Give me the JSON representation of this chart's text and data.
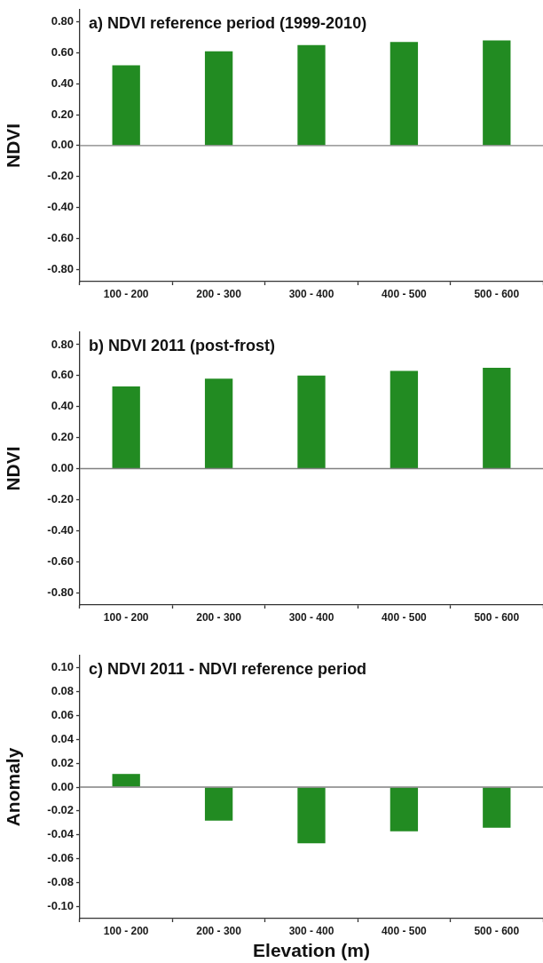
{
  "chart_data": [
    {
      "type": "bar",
      "title": "a) NDVI reference period (1999-2010)",
      "ylabel": "NDVI",
      "categories": [
        "100 - 200",
        "200 - 300",
        "300 - 400",
        "400 - 500",
        "500 - 600"
      ],
      "values": [
        0.52,
        0.61,
        0.65,
        0.67,
        0.68
      ],
      "color": "#228b22",
      "ylim": [
        -0.88,
        0.88
      ],
      "yticks": [
        {
          "value": -0.8,
          "label": "-0.80"
        },
        {
          "value": -0.6,
          "label": "-0.60"
        },
        {
          "value": -0.4,
          "label": "-0.40"
        },
        {
          "value": -0.2,
          "label": "-0.20"
        },
        {
          "value": 0,
          "label": "0.00"
        },
        {
          "value": 0.2,
          "label": "0.20"
        },
        {
          "value": 0.4,
          "label": "0.40"
        },
        {
          "value": 0.6,
          "label": "0.60"
        },
        {
          "value": 0.8,
          "label": "0.80"
        }
      ],
      "ref_lines": [
        {
          "axis": "y",
          "value": 0,
          "color": "#808080"
        }
      ]
    },
    {
      "type": "bar",
      "title": "b) NDVI 2011 (post-frost)",
      "ylabel": "NDVI",
      "categories": [
        "100 - 200",
        "200 - 300",
        "300 - 400",
        "400 - 500",
        "500 - 600"
      ],
      "values": [
        0.53,
        0.58,
        0.6,
        0.63,
        0.65
      ],
      "color": "#228b22",
      "ylim": [
        -0.88,
        0.88
      ],
      "yticks": [
        {
          "value": -0.8,
          "label": "-0.80"
        },
        {
          "value": -0.6,
          "label": "-0.60"
        },
        {
          "value": -0.4,
          "label": "-0.40"
        },
        {
          "value": -0.2,
          "label": "-0.20"
        },
        {
          "value": 0,
          "label": "0.00"
        },
        {
          "value": 0.2,
          "label": "0.20"
        },
        {
          "value": 0.4,
          "label": "0.40"
        },
        {
          "value": 0.6,
          "label": "0.60"
        },
        {
          "value": 0.8,
          "label": "0.80"
        }
      ],
      "ref_lines": [
        {
          "axis": "y",
          "value": 0,
          "color": "#808080"
        }
      ]
    },
    {
      "type": "bar",
      "title": "c) NDVI 2011 - NDVI reference period",
      "xlabel": "Elevation (m)",
      "ylabel": "Anomaly",
      "categories": [
        "100 - 200",
        "200 - 300",
        "300 - 400",
        "400 - 500",
        "500 - 600"
      ],
      "values": [
        0.011,
        -0.028,
        -0.047,
        -0.037,
        -0.034
      ],
      "color": "#228b22",
      "ylim": [
        -0.11,
        0.11
      ],
      "yticks": [
        {
          "value": -0.1,
          "label": "-0.10"
        },
        {
          "value": -0.08,
          "label": "-0.08"
        },
        {
          "value": -0.06,
          "label": "-0.06"
        },
        {
          "value": -0.04,
          "label": "-0.04"
        },
        {
          "value": -0.02,
          "label": "-0.02"
        },
        {
          "value": 0,
          "label": "0.00"
        },
        {
          "value": 0.02,
          "label": "0.02"
        },
        {
          "value": 0.04,
          "label": "0.04"
        },
        {
          "value": 0.06,
          "label": "0.06"
        },
        {
          "value": 0.08,
          "label": "0.08"
        },
        {
          "value": 0.1,
          "label": "0.10"
        }
      ],
      "ref_lines": [
        {
          "axis": "y",
          "value": 0,
          "color": "#808080"
        }
      ]
    }
  ]
}
